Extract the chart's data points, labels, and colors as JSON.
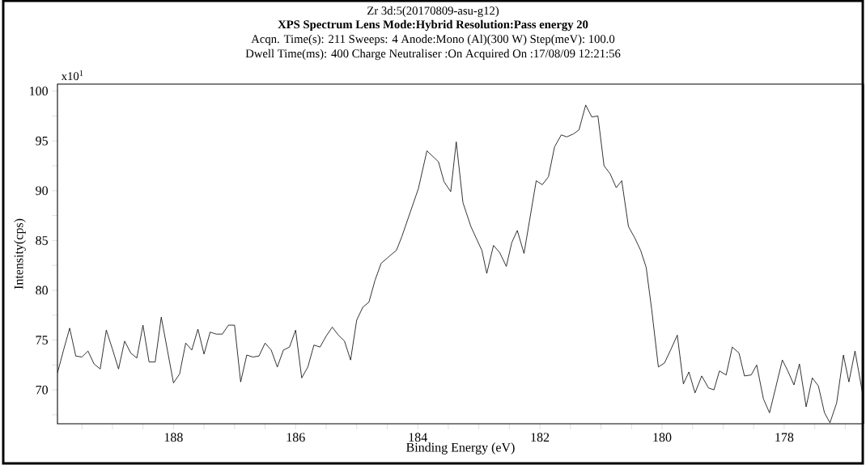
{
  "chart_data": {
    "type": "line",
    "title": "Zr 3d:5(20170809-asu-g12)",
    "subtitle": "XPS     Spectrum    Lens Mode:Hybrid   Resolution:Pass energy 20",
    "annotations": [
      "Acqn. Time(s): 211        Sweeps: 4        Anode:Mono (Al)(300 W)    Step(meV): 100.0",
      "Dwell Time(ms): 400        Charge Neutraliser :On   Acquired On :17/08/09 12:21:56",
      "x10$^{1}$"
    ],
    "xlabel": "Binding Energy (eV)",
    "ylabel": "Intensity(cps)",
    "color": "#000000",
    "grid": false,
    "marker": "none",
    "line_style": "solid",
    "xlim": [
      189.9,
      176.7
    ],
    "ylim": [
      66.6,
      100.7
    ],
    "xticks": [
      {
        "value": 189.5,
        "label": null
      },
      {
        "value": 189,
        "label": null
      },
      {
        "value": 188.5,
        "label": null
      },
      188,
      {
        "value": 187.5,
        "label": null
      },
      {
        "value": 187,
        "label": null
      },
      {
        "value": 186.5,
        "label": null
      },
      186,
      {
        "value": 185.5,
        "label": null
      },
      {
        "value": 185,
        "label": null
      },
      {
        "value": 184.5,
        "label": null
      },
      184,
      {
        "value": 183.5,
        "label": null
      },
      {
        "value": 183,
        "label": null
      },
      {
        "value": 182.5,
        "label": null
      },
      182,
      {
        "value": 181.5,
        "label": null
      },
      {
        "value": 181,
        "label": null
      },
      {
        "value": 180.5,
        "label": null
      },
      180,
      {
        "value": 179.5,
        "label": null
      },
      {
        "value": 179,
        "label": null
      },
      {
        "value": 178.5,
        "label": null
      },
      178,
      {
        "value": 177.5,
        "label": null
      },
      {
        "value": 177,
        "label": null
      }
    ],
    "yticks": [
      {
        "value": 67.5,
        "label": null
      },
      70,
      {
        "value": 72.5,
        "label": null
      },
      75,
      {
        "value": 77.5,
        "label": null
      },
      80,
      {
        "value": 82.5,
        "label": null
      },
      85,
      {
        "value": 87.5,
        "label": null
      },
      90,
      {
        "value": 92.5,
        "label": null
      },
      95,
      {
        "value": 97.5,
        "label": null
      },
      100
    ],
    "x": [
      189.9,
      189.8,
      189.7,
      189.6,
      189.5,
      189.4,
      189.3,
      189.2,
      189.1,
      189.0,
      188.9,
      188.8,
      188.7,
      188.6,
      188.5,
      188.4,
      188.3,
      188.2,
      188.1,
      188.0,
      187.9,
      187.8,
      187.7,
      187.6,
      187.5,
      187.4,
      187.3,
      187.2,
      187.1,
      187.0,
      186.9,
      186.8,
      186.7,
      186.6,
      186.5,
      186.4,
      186.3,
      186.2,
      186.1,
      186.0,
      185.9,
      185.8,
      185.7,
      185.6,
      185.5,
      185.4,
      185.3,
      185.2,
      185.1,
      185.0,
      184.9,
      184.8,
      184.7,
      184.6,
      184.45,
      184.35,
      184.26,
      184.12,
      183.99,
      183.85,
      183.66,
      183.57,
      183.46,
      183.37,
      183.26,
      183.13,
      182.95,
      182.87,
      182.76,
      182.66,
      182.55,
      182.46,
      182.37,
      182.26,
      182.06,
      181.96,
      181.86,
      181.76,
      181.65,
      181.56,
      181.45,
      181.36,
      181.25,
      181.15,
      181.05,
      180.95,
      180.85,
      180.75,
      180.66,
      180.55,
      180.45,
      180.35,
      180.26,
      180.17,
      180.06,
      179.96,
      179.86,
      179.75,
      179.65,
      179.56,
      179.46,
      179.35,
      179.24,
      179.15,
      179.06,
      178.95,
      178.85,
      178.74,
      178.65,
      178.54,
      178.45,
      178.34,
      178.24,
      178.14,
      178.03,
      177.94,
      177.84,
      177.75,
      177.64,
      177.54,
      177.44,
      177.34,
      177.25,
      177.14,
      177.03,
      176.94,
      176.84,
      176.7
    ],
    "values": [
      71.7,
      74.0,
      76.2,
      73.4,
      73.3,
      73.9,
      72.6,
      72.1,
      76.0,
      74.1,
      72.1,
      74.9,
      73.7,
      73.2,
      76.5,
      72.8,
      72.8,
      77.3,
      74.0,
      70.7,
      71.6,
      74.7,
      74.0,
      76.1,
      73.6,
      75.8,
      75.6,
      75.6,
      76.5,
      76.5,
      70.8,
      73.5,
      73.3,
      73.4,
      74.7,
      74.0,
      72.3,
      74.0,
      74.3,
      76.0,
      71.2,
      72.3,
      74.5,
      74.3,
      75.4,
      76.3,
      75.5,
      74.9,
      73.0,
      77.0,
      78.3,
      78.8,
      81.0,
      82.7,
      83.5,
      84.0,
      85.4,
      87.9,
      90.2,
      94.0,
      92.9,
      90.9,
      89.9,
      94.9,
      88.8,
      86.4,
      84.0,
      81.7,
      84.5,
      83.8,
      82.4,
      84.8,
      86.0,
      83.7,
      91.0,
      90.6,
      91.4,
      94.4,
      95.6,
      95.4,
      95.7,
      96.1,
      98.6,
      97.4,
      97.5,
      92.5,
      91.7,
      90.3,
      91.0,
      86.4,
      85.3,
      84.0,
      82.3,
      78.1,
      72.3,
      72.7,
      74.0,
      75.5,
      70.6,
      71.8,
      69.7,
      71.4,
      70.2,
      70.0,
      71.9,
      71.5,
      74.3,
      73.7,
      71.4,
      71.5,
      72.5,
      69.1,
      67.7,
      70.2,
      73.0,
      71.9,
      70.5,
      72.6,
      68.3,
      71.2,
      70.4,
      67.7,
      66.7,
      68.7,
      73.5,
      70.8,
      73.9,
      69.1
    ]
  }
}
